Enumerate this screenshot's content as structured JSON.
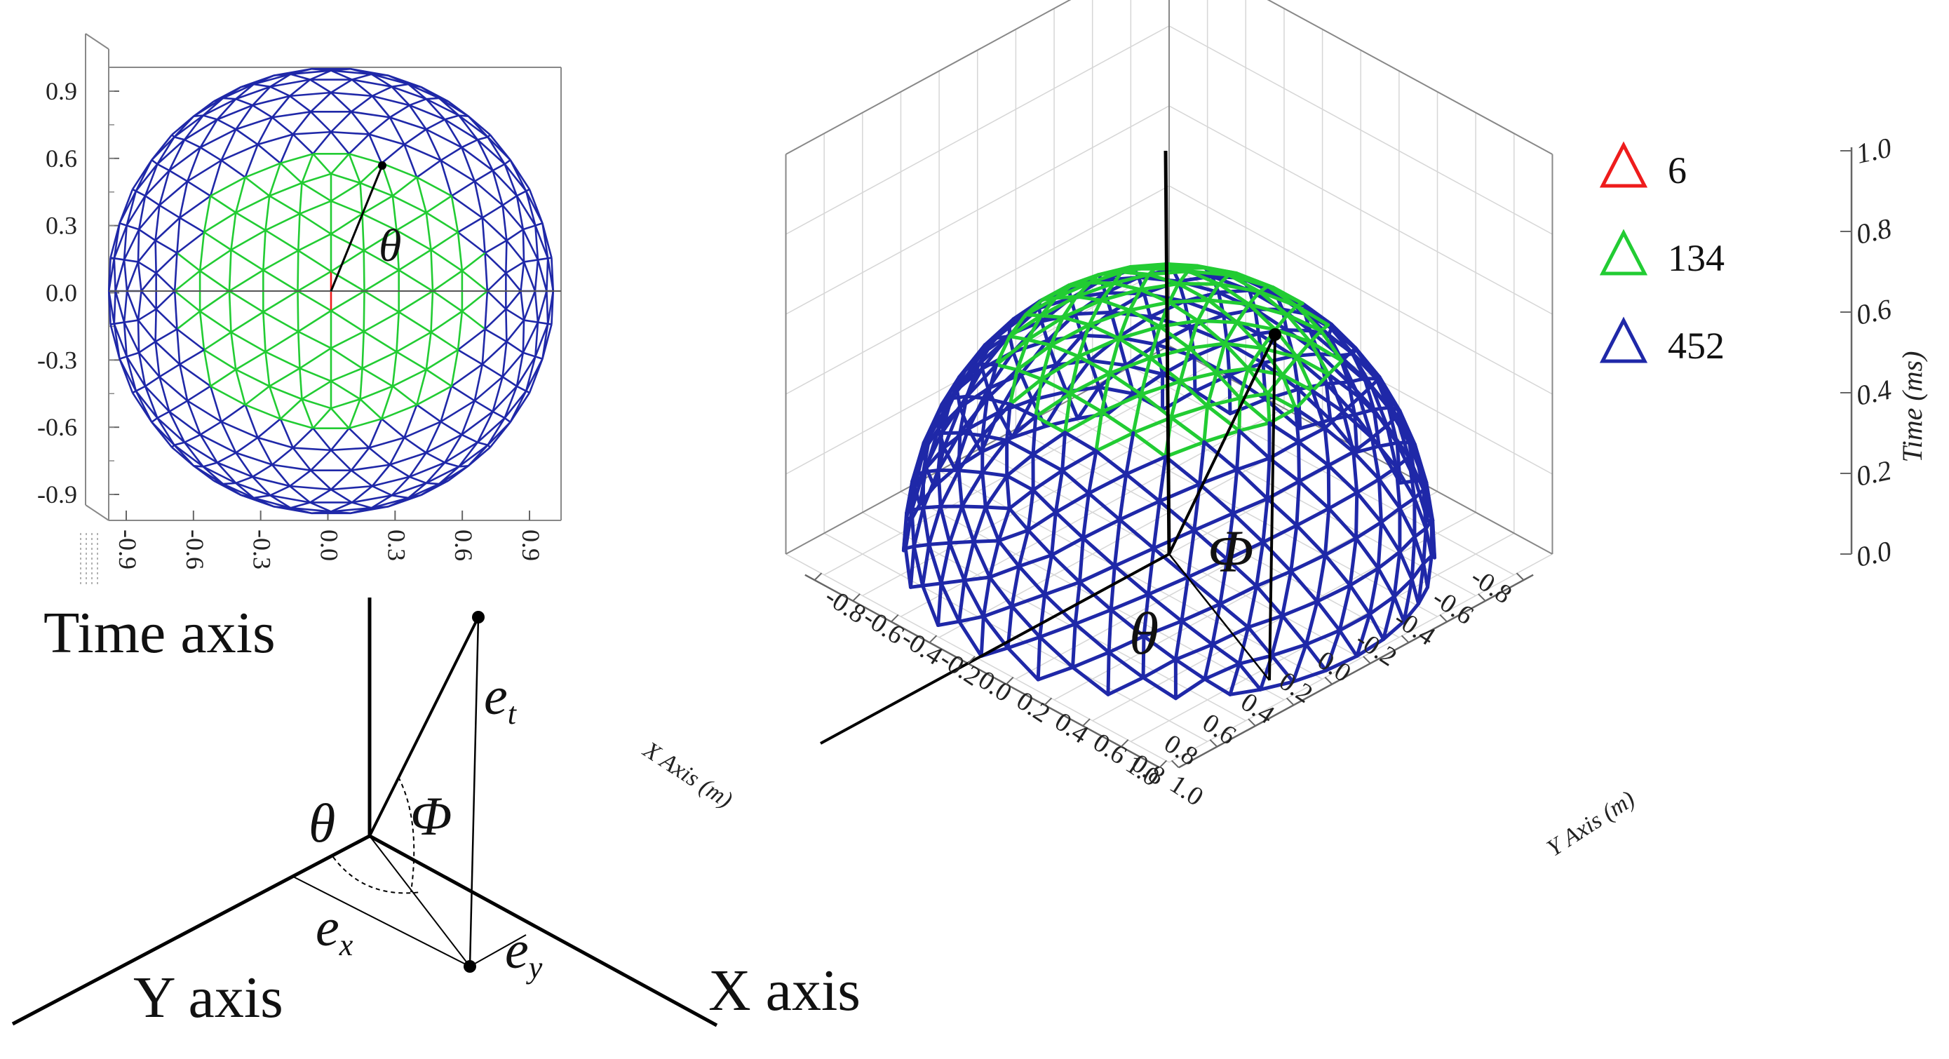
{
  "inset_sphere": {
    "y_ticks": [
      "0.9",
      "0.6",
      "0.3",
      "0.0",
      "-0.3",
      "-0.6",
      "-0.9"
    ],
    "x_ticks": [
      "-0.9",
      "-0.6",
      "-0.3",
      "0.0",
      "0.3",
      "0.6",
      "0.9"
    ],
    "angle_label": "θ"
  },
  "vector_diagram": {
    "time_axis_label": "Time axis",
    "y_axis_label": "Y axis",
    "x_axis_label": "X axis",
    "theta_label": "θ",
    "phi_label": "Φ",
    "et_label": "e",
    "et_sub": "t",
    "ex_label": "e",
    "ex_sub": "x",
    "ey_label": "e",
    "ey_sub": "y"
  },
  "dome_plot": {
    "x_axis_title": "X Axis (m)",
    "y_axis_title": "Y Axis (m)",
    "z_axis_title": "Time (ms)",
    "x_ticks": [
      "-0.8",
      "-0.6",
      "-0.4",
      "-0.2",
      "0.0",
      "0.2",
      "0.4",
      "0.6",
      "0.8",
      "1.0"
    ],
    "y_ticks": [
      "-0.8",
      "-0.6",
      "-0.4",
      "-0.2",
      "0.0",
      "0.2",
      "0.4",
      "0.6",
      "0.8",
      "1.0"
    ],
    "z_ticks": [
      "0.0",
      "0.2",
      "0.4",
      "0.6",
      "0.8",
      "1.0"
    ],
    "phi_label": "Φ",
    "theta_label": "θ",
    "legend": [
      {
        "label": "6",
        "color": "#ee1c1c"
      },
      {
        "label": "134",
        "color": "#22cc33"
      },
      {
        "label": "452",
        "color": "#1f28a8"
      }
    ]
  },
  "colors": {
    "blue": "#1f28a8",
    "green": "#22cc33",
    "red": "#ee1c1c",
    "grid": "#d9d9d9"
  }
}
